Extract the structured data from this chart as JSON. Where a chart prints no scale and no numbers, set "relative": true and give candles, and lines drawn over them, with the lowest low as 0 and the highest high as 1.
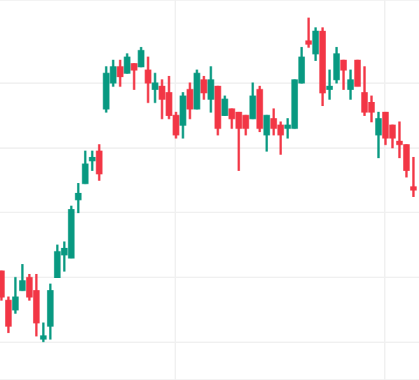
{
  "chart_data": {
    "type": "candlestick",
    "relative": true,
    "grid": true,
    "categories": [
      null,
      null,
      null,
      null,
      null,
      null,
      null,
      null,
      null,
      null,
      null,
      null,
      null,
      null,
      null,
      null,
      null,
      null,
      null,
      null,
      null,
      null,
      null,
      null,
      null,
      null,
      null,
      null,
      null,
      null,
      null,
      null,
      null,
      null,
      null,
      null,
      null,
      null,
      null,
      null,
      null,
      null,
      null,
      null,
      null,
      null,
      null,
      null,
      null,
      null,
      null,
      null,
      null,
      null,
      null,
      null,
      null,
      null,
      null,
      null
    ],
    "ohlc": [
      [
        0.22,
        0.22,
        0.13,
        0.14
      ],
      [
        0.13,
        0.14,
        0.03,
        0.05
      ],
      [
        0.1,
        0.2,
        0.09,
        0.14
      ],
      [
        0.16,
        0.24,
        0.16,
        0.19
      ],
      [
        0.2,
        0.21,
        0.13,
        0.14
      ],
      [
        0.16,
        0.21,
        0.02,
        0.06
      ],
      [
        0.01,
        0.06,
        0,
        0.02
      ],
      [
        0.05,
        0.18,
        0.01,
        0.16
      ],
      [
        0.2,
        0.3,
        0.2,
        0.28
      ],
      [
        0.27,
        0.31,
        0.22,
        0.29
      ],
      [
        0.26,
        0.42,
        0.26,
        0.41
      ],
      [
        0.44,
        0.49,
        0.4,
        0.46
      ],
      [
        0.49,
        0.59,
        0.49,
        0.55
      ],
      [
        0.56,
        0.59,
        0.53,
        0.57
      ],
      [
        0.59,
        0.61,
        0.5,
        0.52
      ],
      [
        0.72,
        0.85,
        0.71,
        0.83
      ],
      [
        0.8,
        0.87,
        0.79,
        0.85
      ],
      [
        0.85,
        0.87,
        0.79,
        0.82
      ],
      [
        0.83,
        0.89,
        0.83,
        0.88
      ],
      [
        0.86,
        0.86,
        0.78,
        0.84
      ],
      [
        0.85,
        0.91,
        0.85,
        0.9
      ],
      [
        0.84,
        0.88,
        0.74,
        0.8
      ],
      [
        0.78,
        0.83,
        0.74,
        0.8
      ],
      [
        0.79,
        0.81,
        0.69,
        0.75
      ],
      [
        0.77,
        0.82,
        0.69,
        0.7
      ],
      [
        0.7,
        0.71,
        0.63,
        0.64
      ],
      [
        0.67,
        0.77,
        0.63,
        0.76
      ],
      [
        0.78,
        0.8,
        0.69,
        0.72
      ],
      [
        0.72,
        0.84,
        0.72,
        0.83
      ],
      [
        0.81,
        0.82,
        0.75,
        0.77
      ],
      [
        0.75,
        0.85,
        0.71,
        0.81
      ],
      [
        0.79,
        0.79,
        0.64,
        0.66
      ],
      [
        0.7,
        0.76,
        0.7,
        0.75
      ],
      [
        0.72,
        0.72,
        0.66,
        0.69
      ],
      [
        0.71,
        0.71,
        0.53,
        0.66
      ],
      [
        0.7,
        0.7,
        0.64,
        0.66
      ],
      [
        0.69,
        0.8,
        0.69,
        0.76
      ],
      [
        0.78,
        0.79,
        0.65,
        0.66
      ],
      [
        0.64,
        0.7,
        0.59,
        0.7
      ],
      [
        0.69,
        0.72,
        0.64,
        0.66
      ],
      [
        0.67,
        0.68,
        0.58,
        0.64
      ],
      [
        0.66,
        0.69,
        0.63,
        0.67
      ],
      [
        0.66,
        0.81,
        0.66,
        0.81
      ],
      [
        0.8,
        0.91,
        0.8,
        0.88
      ],
      [
        0.93,
        1,
        0.91,
        0.92
      ],
      [
        0.89,
        0.97,
        0.87,
        0.96
      ],
      [
        0.96,
        0.97,
        0.73,
        0.77
      ],
      [
        0.78,
        0.84,
        0.75,
        0.79
      ],
      [
        0.81,
        0.91,
        0.8,
        0.89
      ],
      [
        0.87,
        0.87,
        0.78,
        0.84
      ],
      [
        0.78,
        0.84,
        0.75,
        0.81
      ],
      [
        0.87,
        0.87,
        0.79,
        0.79
      ],
      [
        0.77,
        0.85,
        0.7,
        0.71
      ],
      [
        0.74,
        0.76,
        0.68,
        0.71
      ],
      [
        0.64,
        0.71,
        0.57,
        0.69
      ],
      [
        0.71,
        0.71,
        0.61,
        0.63
      ],
      [
        0.67,
        0.67,
        0.6,
        0.63
      ],
      [
        0.62,
        0.68,
        0.57,
        0.61
      ],
      [
        0.61,
        0.61,
        0.51,
        0.53
      ],
      [
        0.48,
        0.57,
        0.45,
        0.47
      ]
    ],
    "colors": [
      "#f23645",
      "#f23645",
      "#089981",
      "#089981",
      "#f23645",
      "#f23645",
      "#089981",
      "#089981",
      "#089981",
      "#089981",
      "#089981",
      "#089981",
      "#089981",
      "#089981",
      "#f23645",
      "#089981",
      "#089981",
      "#f23645",
      "#089981",
      "#f23645",
      "#089981",
      "#f23645",
      "#089981",
      "#f23645",
      "#f23645",
      "#f23645",
      "#089981",
      "#f23645",
      "#089981",
      "#f23645",
      "#089981",
      "#f23645",
      "#089981",
      "#f23645",
      "#f23645",
      "#f23645",
      "#089981",
      "#f23645",
      "#089981",
      "#f23645",
      "#f23645",
      "#089981",
      "#089981",
      "#089981",
      "#f23645",
      "#089981",
      "#f23645",
      "#089981",
      "#089981",
      "#f23645",
      "#089981",
      "#f23645",
      "#f23645",
      "#f23645",
      "#089981",
      "#f23645",
      "#f23645",
      "#f23645",
      "#f23645",
      "#f23645"
    ]
  }
}
